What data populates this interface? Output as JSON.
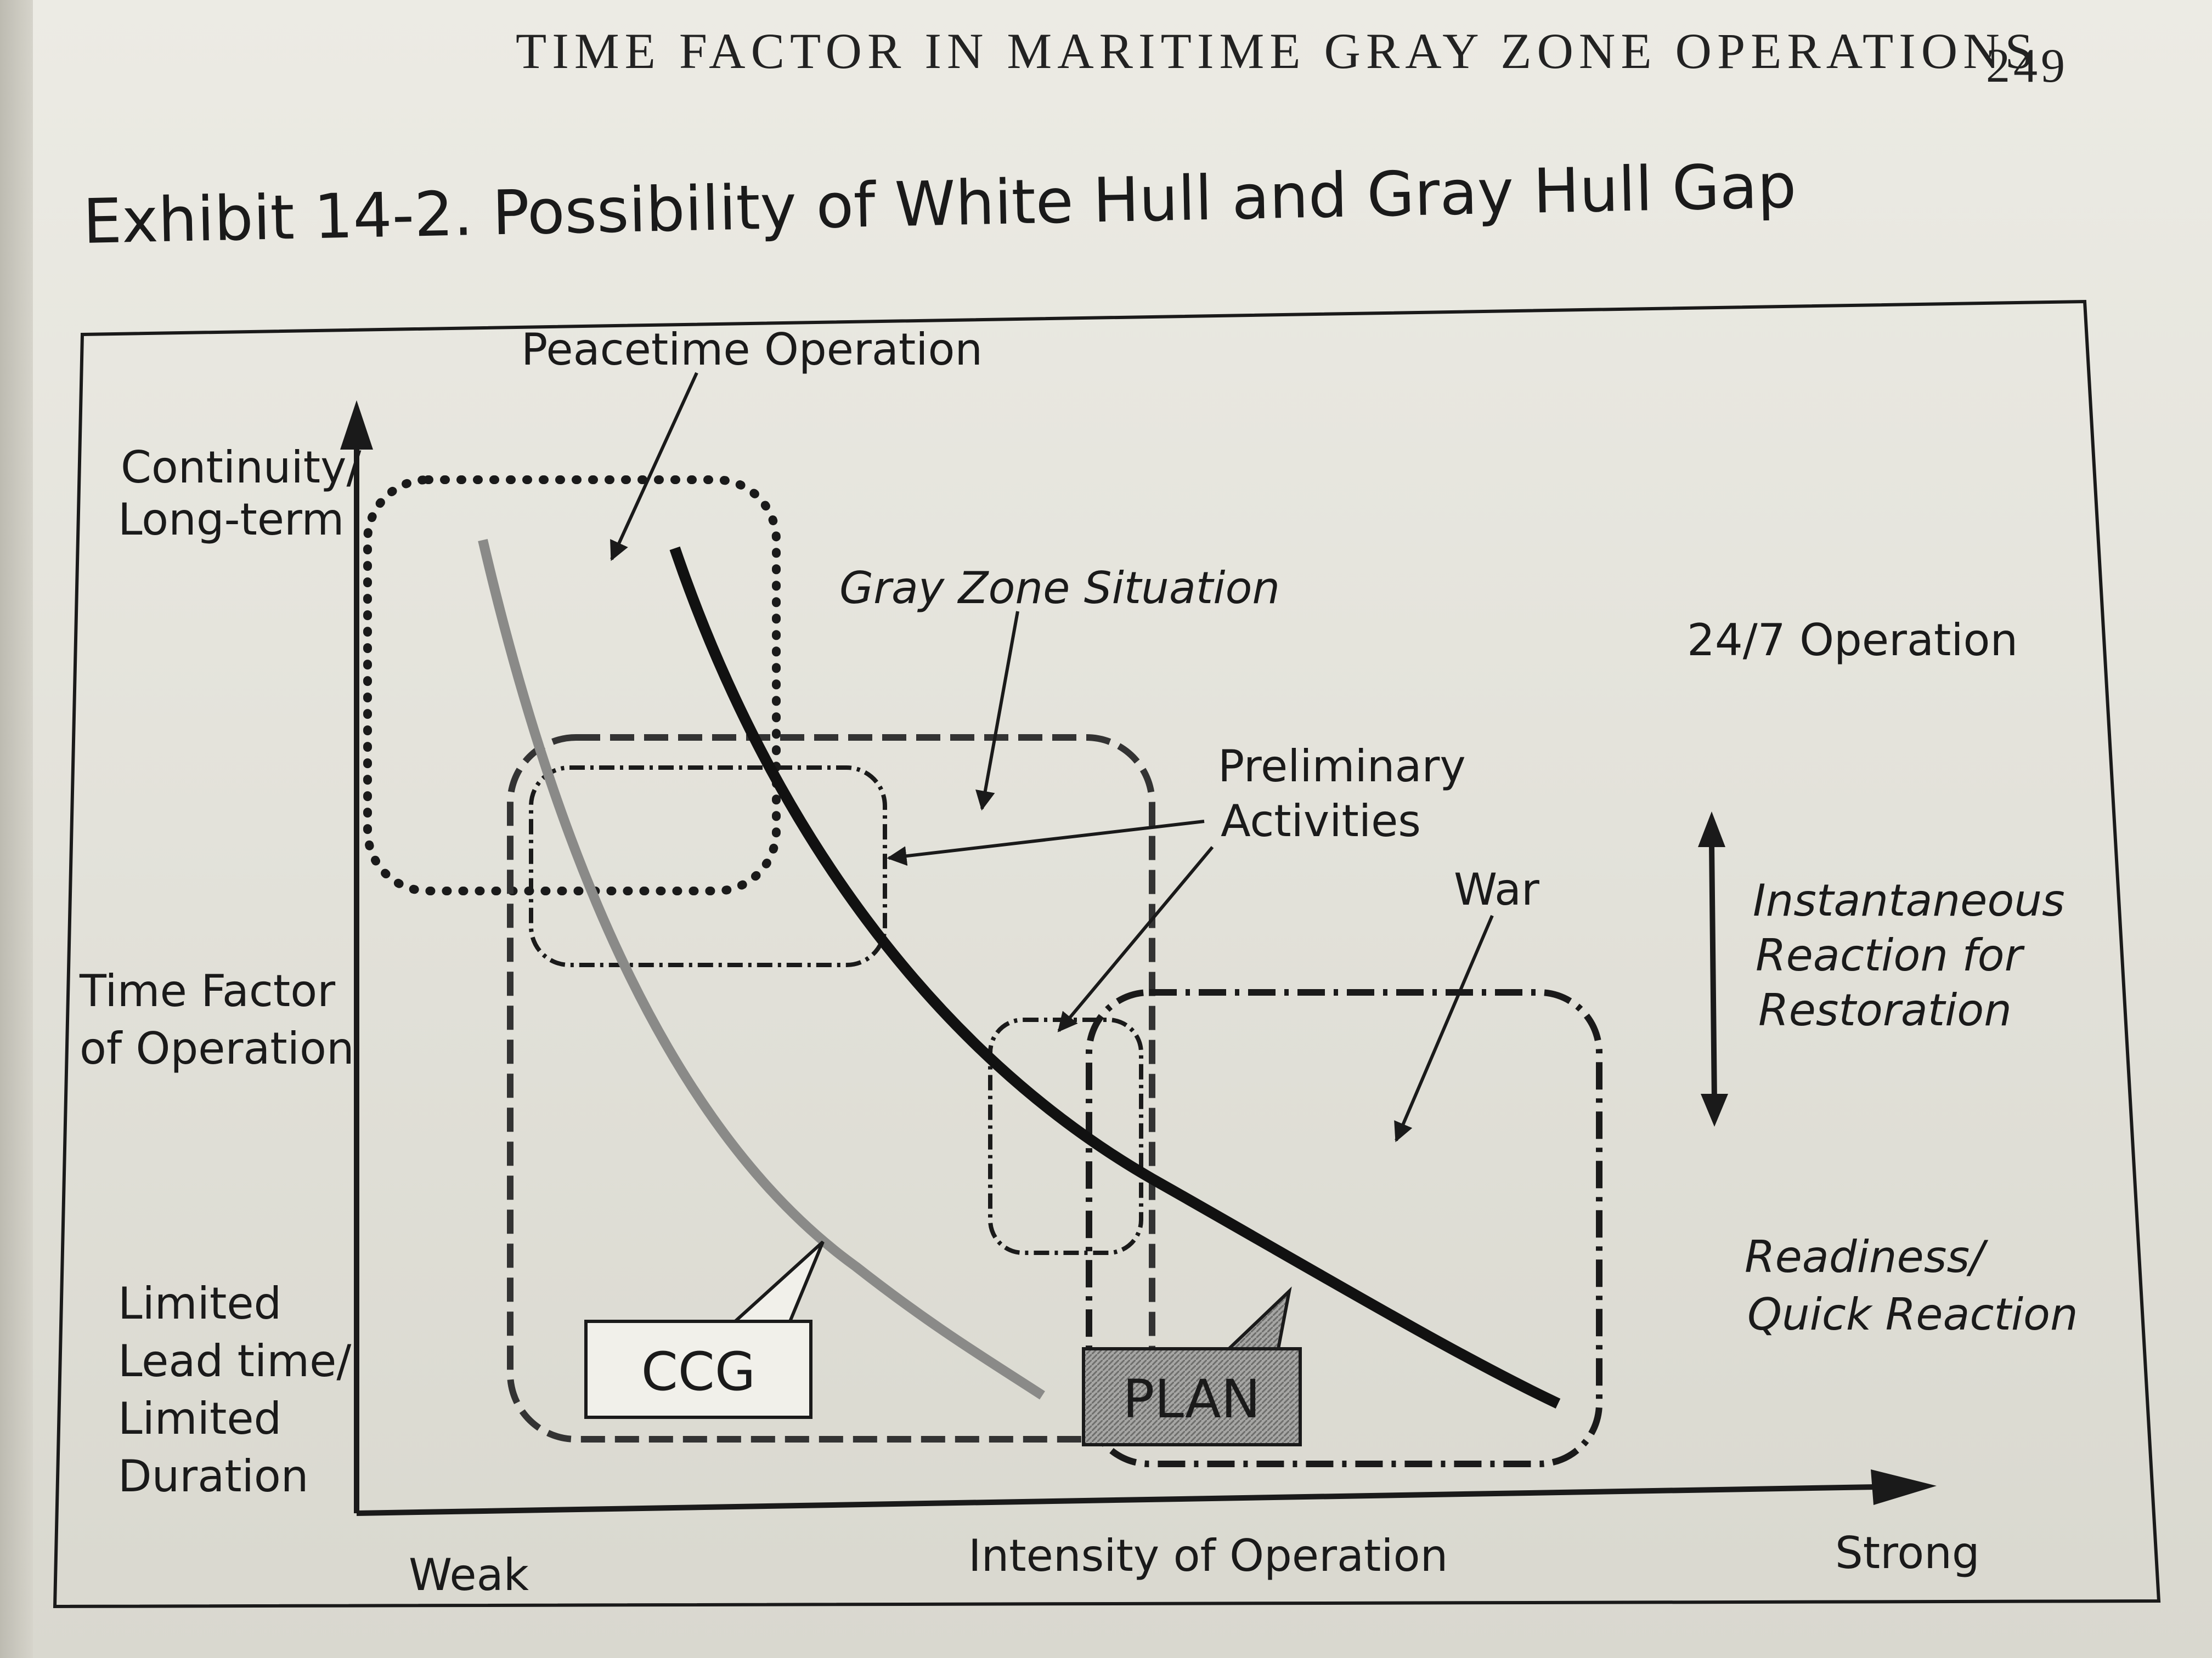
{
  "header": {
    "running_head": "TIME FACTOR IN MARITIME GRAY ZONE OPERATIONS",
    "page_number": "249"
  },
  "exhibit": {
    "title": "Exhibit 14-2. Possibility of White Hull and Gray Hull Gap"
  },
  "axes": {
    "y_label_lines": [
      "Time Factor",
      "of Operation"
    ],
    "y_top_lines": [
      "Continuity/",
      "Long-term"
    ],
    "y_bottom_lines": [
      "Limited",
      "Lead time/",
      "Limited",
      "Duration"
    ],
    "x_label": "Intensity of Operation",
    "x_left": "Weak",
    "x_right": "Strong"
  },
  "regions": {
    "peacetime": "Peacetime Operation",
    "gray_zone": "Gray Zone Situation",
    "preliminary_lines": [
      "Preliminary",
      "Activities"
    ],
    "war": "War"
  },
  "right_annotations": {
    "top": "24/7 Operation",
    "middle_lines": [
      "Instantaneous",
      "Reaction for",
      "Restoration"
    ],
    "bottom_lines": [
      "Readiness/",
      "Quick Reaction"
    ]
  },
  "callouts": {
    "ccg": "CCG",
    "plan": "PLAN"
  },
  "colors": {
    "paper": "#e6e4dc",
    "ink": "#1a1a1a",
    "ccg_curve": "#8a8a88",
    "plan_box_fill": "#9a9a98"
  }
}
